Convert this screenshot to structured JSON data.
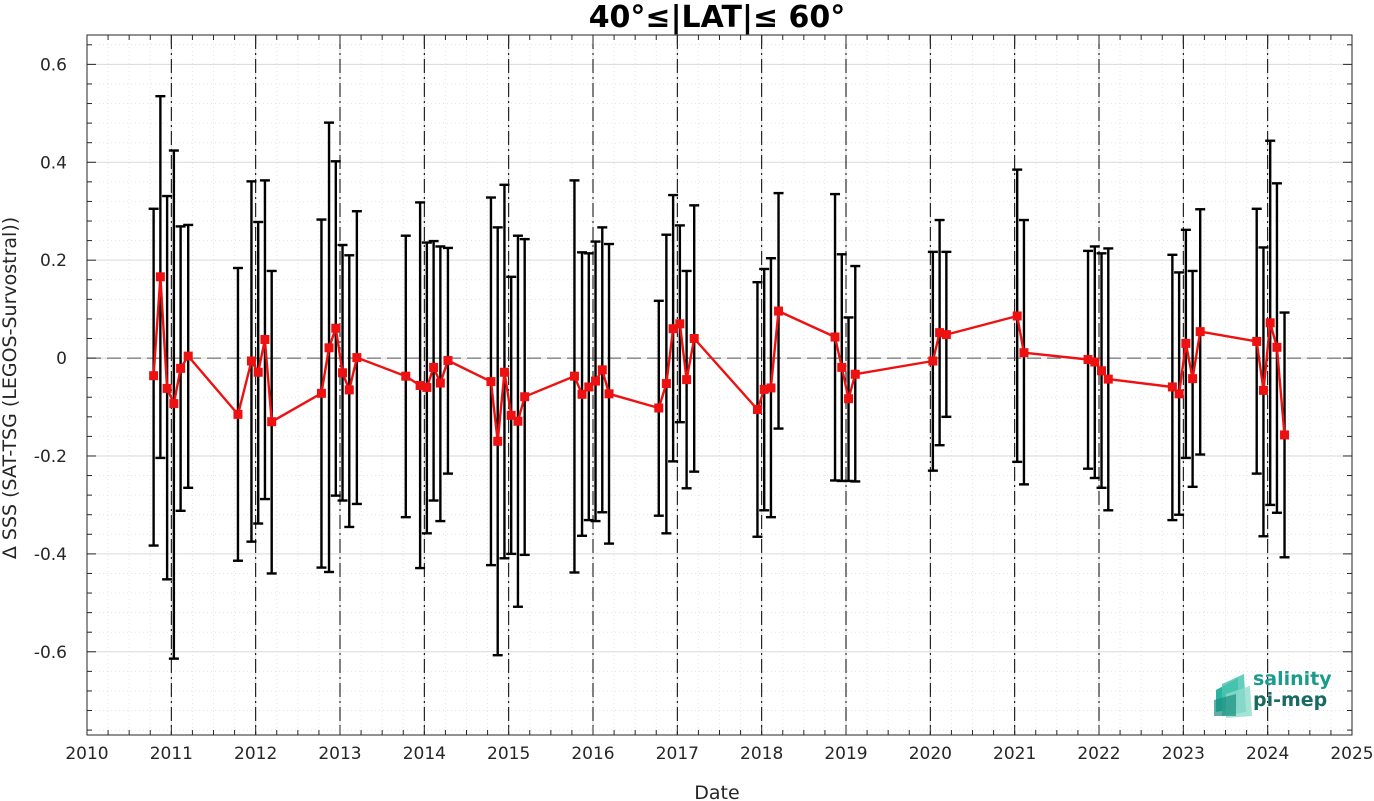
{
  "chart_data": {
    "type": "line",
    "title": "40°≤|LAT|≤ 60°",
    "xlabel": "Date",
    "ylabel": "Δ SSS (SAT-TSG (LEGOS-Survostral))",
    "xlim": [
      2010,
      2025
    ],
    "ylim": [
      -0.77,
      0.66
    ],
    "x_ticks": [
      "2010",
      "2011",
      "2012",
      "2013",
      "2014",
      "2015",
      "2016",
      "2017",
      "2018",
      "2019",
      "2020",
      "2021",
      "2022",
      "2023",
      "2024",
      "2025"
    ],
    "y_ticks": [
      "0.6",
      "0.4",
      "0.2",
      "0",
      "-0.2",
      "-0.4",
      "-0.6"
    ],
    "y_tick_values": [
      0.6,
      0.4,
      0.2,
      0,
      -0.2,
      -0.4,
      -0.6
    ],
    "grid": true,
    "year_markers": [
      2011,
      2012,
      2013,
      2014,
      2015,
      2016,
      2017,
      2018,
      2019,
      2020,
      2021,
      2022,
      2023,
      2024
    ],
    "series": [
      {
        "color": "#ee1111",
        "errorbar_color": "#000000",
        "points": [
          {
            "x": 2010.79,
            "y": -0.036,
            "lo": -0.383,
            "hi": 0.305
          },
          {
            "x": 2010.87,
            "y": 0.166,
            "lo": -0.204,
            "hi": 0.535
          },
          {
            "x": 2010.95,
            "y": -0.062,
            "lo": -0.452,
            "hi": 0.331
          },
          {
            "x": 2011.03,
            "y": -0.093,
            "lo": -0.614,
            "hi": 0.424
          },
          {
            "x": 2011.11,
            "y": -0.021,
            "lo": -0.312,
            "hi": 0.269
          },
          {
            "x": 2011.2,
            "y": 0.004,
            "lo": -0.265,
            "hi": 0.272
          },
          {
            "x": 2011.79,
            "y": -0.115,
            "lo": -0.414,
            "hi": 0.184
          },
          {
            "x": 2011.95,
            "y": -0.006,
            "lo": -0.375,
            "hi": 0.361
          },
          {
            "x": 2012.03,
            "y": -0.029,
            "lo": -0.338,
            "hi": 0.278
          },
          {
            "x": 2012.11,
            "y": 0.038,
            "lo": -0.288,
            "hi": 0.363
          },
          {
            "x": 2012.19,
            "y": -0.13,
            "lo": -0.44,
            "hi": 0.178
          },
          {
            "x": 2012.78,
            "y": -0.072,
            "lo": -0.428,
            "hi": 0.283
          },
          {
            "x": 2012.87,
            "y": 0.021,
            "lo": -0.437,
            "hi": 0.481
          },
          {
            "x": 2012.95,
            "y": 0.061,
            "lo": -0.281,
            "hi": 0.402
          },
          {
            "x": 2013.03,
            "y": -0.03,
            "lo": -0.291,
            "hi": 0.231
          },
          {
            "x": 2013.11,
            "y": -0.065,
            "lo": -0.345,
            "hi": 0.21
          },
          {
            "x": 2013.2,
            "y": 0.001,
            "lo": -0.298,
            "hi": 0.3
          },
          {
            "x": 2013.78,
            "y": -0.037,
            "lo": -0.325,
            "hi": 0.25
          },
          {
            "x": 2013.95,
            "y": -0.056,
            "lo": -0.429,
            "hi": 0.318
          },
          {
            "x": 2014.03,
            "y": -0.06,
            "lo": -0.358,
            "hi": 0.236
          },
          {
            "x": 2014.11,
            "y": -0.019,
            "lo": -0.291,
            "hi": 0.239
          },
          {
            "x": 2014.19,
            "y": -0.051,
            "lo": -0.333,
            "hi": 0.228
          },
          {
            "x": 2014.28,
            "y": -0.005,
            "lo": -0.236,
            "hi": 0.225
          },
          {
            "x": 2014.79,
            "y": -0.048,
            "lo": -0.423,
            "hi": 0.328
          },
          {
            "x": 2014.87,
            "y": -0.17,
            "lo": -0.607,
            "hi": 0.267
          },
          {
            "x": 2014.95,
            "y": -0.029,
            "lo": -0.409,
            "hi": 0.354
          },
          {
            "x": 2015.03,
            "y": -0.117,
            "lo": -0.4,
            "hi": 0.166
          },
          {
            "x": 2015.11,
            "y": -0.129,
            "lo": -0.508,
            "hi": 0.25
          },
          {
            "x": 2015.19,
            "y": -0.079,
            "lo": -0.402,
            "hi": 0.243
          },
          {
            "x": 2015.78,
            "y": -0.037,
            "lo": -0.438,
            "hi": 0.363
          },
          {
            "x": 2015.87,
            "y": -0.074,
            "lo": -0.363,
            "hi": 0.216
          },
          {
            "x": 2015.95,
            "y": -0.059,
            "lo": -0.331,
            "hi": 0.214
          },
          {
            "x": 2016.03,
            "y": -0.047,
            "lo": -0.333,
            "hi": 0.238
          },
          {
            "x": 2016.11,
            "y": -0.024,
            "lo": -0.315,
            "hi": 0.267
          },
          {
            "x": 2016.19,
            "y": -0.073,
            "lo": -0.379,
            "hi": 0.233
          },
          {
            "x": 2016.78,
            "y": -0.102,
            "lo": -0.322,
            "hi": 0.117
          },
          {
            "x": 2016.87,
            "y": -0.052,
            "lo": -0.358,
            "hi": 0.252
          },
          {
            "x": 2016.95,
            "y": 0.06,
            "lo": -0.211,
            "hi": 0.333
          },
          {
            "x": 2017.03,
            "y": 0.07,
            "lo": -0.131,
            "hi": 0.271
          },
          {
            "x": 2017.11,
            "y": -0.044,
            "lo": -0.266,
            "hi": 0.178
          },
          {
            "x": 2017.2,
            "y": 0.04,
            "lo": -0.232,
            "hi": 0.312
          },
          {
            "x": 2017.95,
            "y": -0.105,
            "lo": -0.365,
            "hi": 0.155
          },
          {
            "x": 2018.03,
            "y": -0.064,
            "lo": -0.311,
            "hi": 0.182
          },
          {
            "x": 2018.11,
            "y": -0.061,
            "lo": -0.325,
            "hi": 0.204
          },
          {
            "x": 2018.2,
            "y": 0.096,
            "lo": -0.144,
            "hi": 0.337
          },
          {
            "x": 2018.87,
            "y": 0.043,
            "lo": -0.25,
            "hi": 0.335
          },
          {
            "x": 2018.95,
            "y": -0.019,
            "lo": -0.251,
            "hi": 0.212
          },
          {
            "x": 2019.03,
            "y": -0.083,
            "lo": -0.251,
            "hi": 0.083
          },
          {
            "x": 2019.11,
            "y": -0.033,
            "lo": -0.252,
            "hi": 0.188
          },
          {
            "x": 2020.03,
            "y": -0.006,
            "lo": -0.23,
            "hi": 0.217
          },
          {
            "x": 2020.11,
            "y": 0.052,
            "lo": -0.178,
            "hi": 0.282
          },
          {
            "x": 2020.19,
            "y": 0.048,
            "lo": -0.12,
            "hi": 0.217
          },
          {
            "x": 2021.03,
            "y": 0.086,
            "lo": -0.212,
            "hi": 0.385
          },
          {
            "x": 2021.11,
            "y": 0.011,
            "lo": -0.258,
            "hi": 0.282
          },
          {
            "x": 2021.87,
            "y": -0.003,
            "lo": -0.226,
            "hi": 0.219
          },
          {
            "x": 2021.95,
            "y": -0.008,
            "lo": -0.245,
            "hi": 0.228
          },
          {
            "x": 2022.03,
            "y": -0.026,
            "lo": -0.265,
            "hi": 0.214
          },
          {
            "x": 2022.11,
            "y": -0.043,
            "lo": -0.311,
            "hi": 0.224
          },
          {
            "x": 2022.87,
            "y": -0.059,
            "lo": -0.331,
            "hi": 0.211
          },
          {
            "x": 2022.95,
            "y": -0.073,
            "lo": -0.32,
            "hi": 0.175
          },
          {
            "x": 2023.03,
            "y": 0.03,
            "lo": -0.204,
            "hi": 0.262
          },
          {
            "x": 2023.11,
            "y": -0.042,
            "lo": -0.263,
            "hi": 0.178
          },
          {
            "x": 2023.2,
            "y": 0.054,
            "lo": -0.197,
            "hi": 0.304
          },
          {
            "x": 2023.87,
            "y": 0.034,
            "lo": -0.236,
            "hi": 0.305
          },
          {
            "x": 2023.95,
            "y": -0.066,
            "lo": -0.364,
            "hi": 0.226
          },
          {
            "x": 2024.03,
            "y": 0.072,
            "lo": -0.3,
            "hi": 0.444
          },
          {
            "x": 2024.11,
            "y": 0.022,
            "lo": -0.316,
            "hi": 0.357
          },
          {
            "x": 2024.2,
            "y": -0.157,
            "lo": -0.407,
            "hi": 0.093
          }
        ]
      }
    ]
  },
  "logo": {
    "line1": "salinity",
    "line2": "pi-mep",
    "color1": "#1a9b8c",
    "color2": "#1a6a64"
  }
}
